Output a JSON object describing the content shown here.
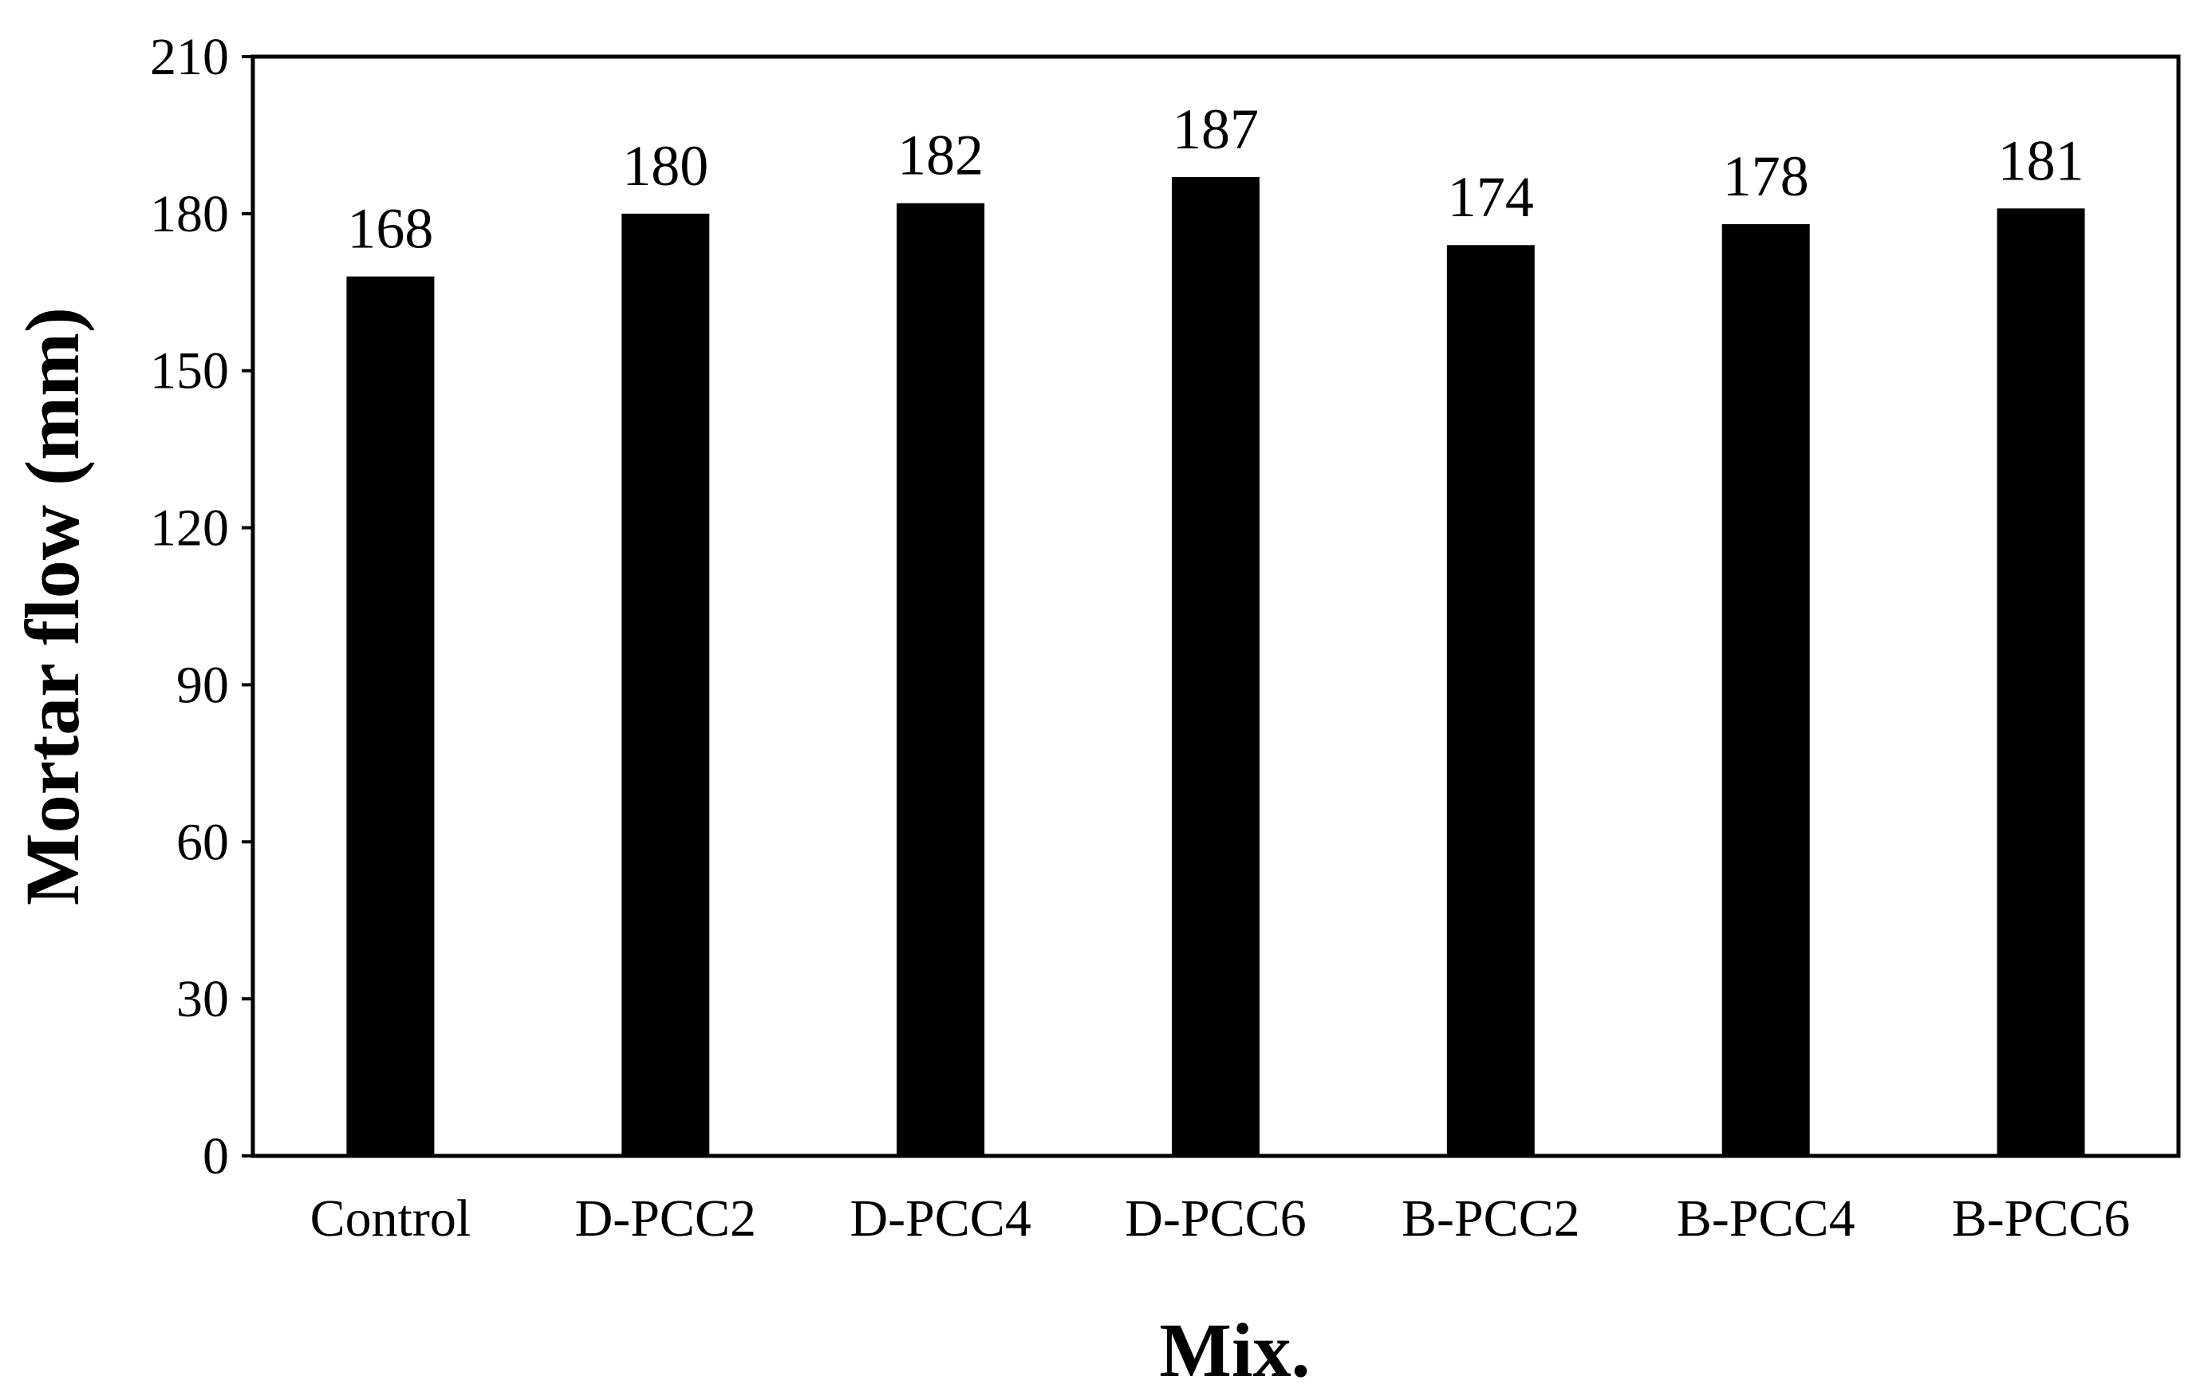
{
  "chart_data": {
    "type": "bar",
    "title": "",
    "xlabel": "Mix.",
    "ylabel": "Mortar flow (mm)",
    "categories": [
      "Control",
      "D-PCC2",
      "D-PCC4",
      "D-PCC6",
      "B-PCC2",
      "B-PCC4",
      "B-PCC6"
    ],
    "values": [
      168,
      180,
      182,
      187,
      174,
      178,
      181
    ],
    "ylim": [
      0,
      210
    ],
    "yticks": [
      0,
      30,
      60,
      90,
      120,
      150,
      180,
      210
    ],
    "grid": false,
    "legend": "none",
    "colors": {
      "bar": "#000000",
      "axis": "#000000",
      "background": "#ffffff"
    }
  }
}
